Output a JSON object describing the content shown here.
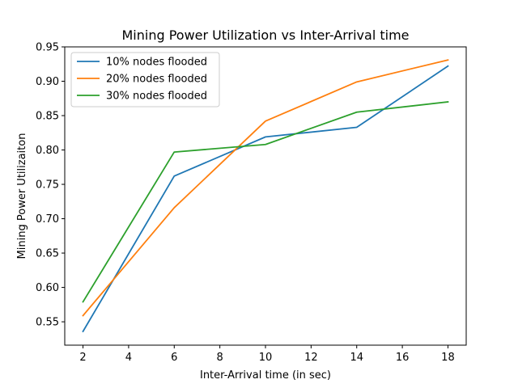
{
  "chart_data": {
    "type": "line",
    "title": "Mining Power Utilization vs Inter-Arrival time",
    "xlabel": "Inter-Arrival time (in sec)",
    "ylabel": "Mining Power Utilizaiton",
    "x": [
      2,
      6,
      10,
      14,
      18
    ],
    "xlim": [
      1.2,
      18.8
    ],
    "ylim": [
      0.516,
      0.95
    ],
    "xticks": [
      2,
      4,
      6,
      8,
      10,
      12,
      14,
      16,
      18
    ],
    "xtick_labels": [
      "2",
      "4",
      "6",
      "8",
      "10",
      "12",
      "14",
      "16",
      "18"
    ],
    "yticks": [
      0.55,
      0.6,
      0.65,
      0.7,
      0.75,
      0.8,
      0.85,
      0.9,
      0.95
    ],
    "ytick_labels": [
      "0.55",
      "0.60",
      "0.65",
      "0.70",
      "0.75",
      "0.80",
      "0.85",
      "0.90",
      "0.95"
    ],
    "grid": false,
    "legend_position": "top-left",
    "series": [
      {
        "name": "10% nodes flooded",
        "color": "#1f77b4",
        "values": [
          0.536,
          0.762,
          0.819,
          0.833,
          0.922
        ]
      },
      {
        "name": "20% nodes flooded",
        "color": "#ff7f0e",
        "values": [
          0.559,
          0.716,
          0.842,
          0.899,
          0.931
        ]
      },
      {
        "name": "30% nodes flooded",
        "color": "#2ca02c",
        "values": [
          0.579,
          0.797,
          0.808,
          0.855,
          0.87
        ]
      }
    ]
  }
}
